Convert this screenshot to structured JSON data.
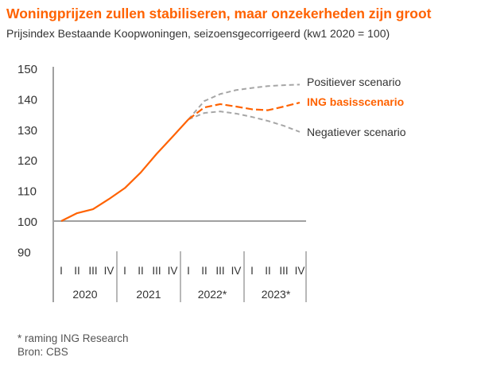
{
  "title": "Woningprijzen zullen stabiliseren, maar onzekerheden zijn groot",
  "subtitle": "Prijsindex Bestaande Koopwoningen, seizoensgecorrigeerd (kw1 2020 = 100)",
  "footnotes": [
    "* raming ING Research",
    "Bron: CBS"
  ],
  "colors": {
    "orange": "#ff6200",
    "scenario_gray": "#a6a6a6",
    "axis": "#a0a0a0",
    "text": "#333333"
  },
  "chart_data": {
    "type": "line",
    "title": "Woningprijzen zullen stabiliseren, maar onzekerheden zijn groot",
    "ylim": [
      90,
      150
    ],
    "yticks": [
      90,
      100,
      110,
      120,
      130,
      140,
      150
    ],
    "baseline": 100,
    "grid": false,
    "quarter_labels": [
      "I",
      "II",
      "III",
      "IV",
      "I",
      "II",
      "III",
      "IV",
      "I",
      "II",
      "III",
      "IV",
      "I",
      "II",
      "III",
      "IV"
    ],
    "years": [
      "2020",
      "2021",
      "2022*",
      "2023*"
    ],
    "series": [
      {
        "name": "",
        "style": "solid",
        "color": "#ff6200",
        "start_index": 0,
        "values": [
          100,
          102.6,
          103.9,
          107.2,
          110.8,
          115.9,
          122,
          127.6,
          133.3
        ]
      },
      {
        "name": "ING basisscenario",
        "style": "dashed",
        "color": "#ff6200",
        "start_index": 8,
        "values": [
          133.3,
          137.2,
          138.3,
          137.5,
          136.6,
          136.3,
          137.5,
          138.8
        ]
      },
      {
        "name": "Positiever scenario",
        "style": "dashed",
        "color": "#a6a6a6",
        "start_index": 8,
        "values": [
          133.3,
          139.3,
          141.6,
          142.9,
          143.6,
          144.2,
          144.5,
          144.7
        ]
      },
      {
        "name": "Negatiever scenario",
        "style": "dashed",
        "color": "#a6a6a6",
        "start_index": 8,
        "values": [
          133.3,
          135.4,
          135.9,
          135.2,
          134.1,
          132.8,
          131.2,
          129.2
        ]
      }
    ]
  }
}
